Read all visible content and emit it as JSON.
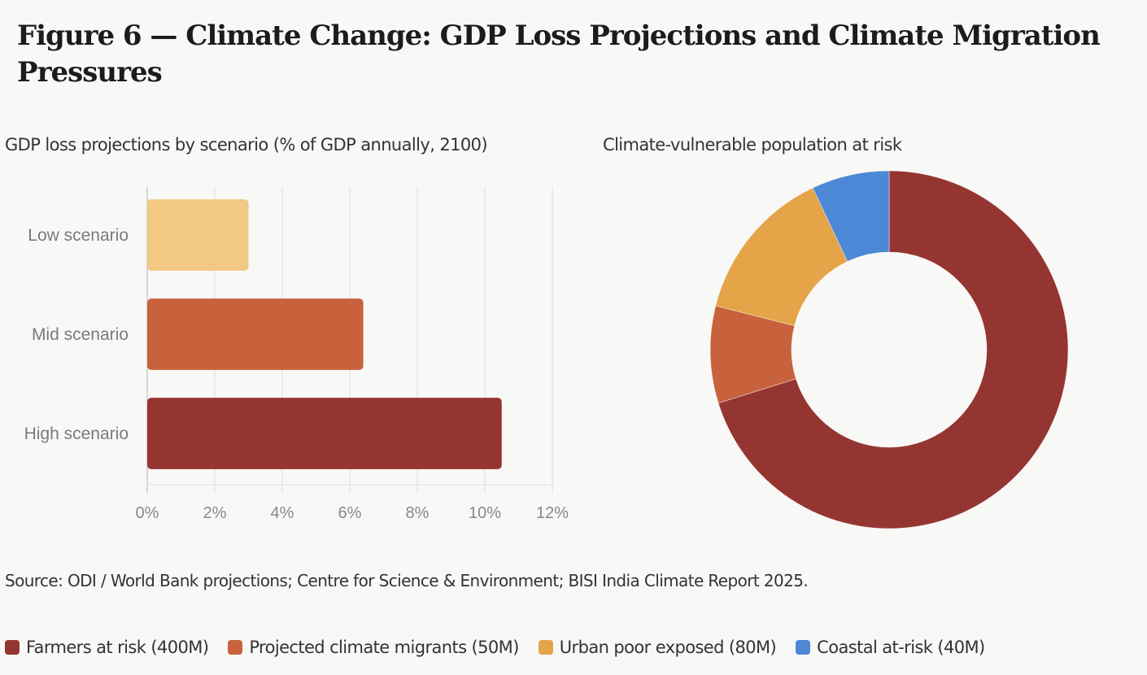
{
  "figure": {
    "title": "Figure 6 — Climate Change: GDP Loss Projections and Climate Migration Pressures",
    "source": "Source: ODI / World Bank projections; Centre for Science & Environment; BISI India Climate Report 2025."
  },
  "chart_data": [
    {
      "type": "bar",
      "orientation": "horizontal",
      "title": "GDP loss projections by scenario (% of GDP annually, 2100)",
      "categories": [
        "Low scenario",
        "Mid scenario",
        "High scenario"
      ],
      "values": [
        3.0,
        6.4,
        10.5
      ],
      "colors": [
        "#f2c882",
        "#c8623d",
        "#953532"
      ],
      "xlabel": "",
      "ylabel": "",
      "xlim": [
        0,
        12
      ],
      "xticks": [
        0,
        2,
        4,
        6,
        8,
        10,
        12
      ],
      "xtick_labels": [
        "0%",
        "2%",
        "4%",
        "6%",
        "8%",
        "10%",
        "12%"
      ],
      "grid": true,
      "axis_color": "#cccccc",
      "grid_color": "#e5e5e3",
      "tick_color": "#888888"
    },
    {
      "type": "pie",
      "donut": true,
      "title": "Climate-vulnerable population at risk",
      "categories": [
        "Farmers at risk",
        "Projected climate migrants",
        "Urban poor exposed",
        "Coastal at-risk"
      ],
      "values": [
        400,
        50,
        80,
        40
      ],
      "unit": "M",
      "colors": [
        "#953532",
        "#c8623d",
        "#e4a447",
        "#4c88d6"
      ],
      "legend_labels": [
        "Farmers at risk (400M)",
        "Projected climate migrants (50M)",
        "Urban poor exposed (80M)",
        "Coastal at-risk (40M)"
      ],
      "legend_position": "bottom-left",
      "start": "top",
      "direction": "clockwise"
    }
  ]
}
